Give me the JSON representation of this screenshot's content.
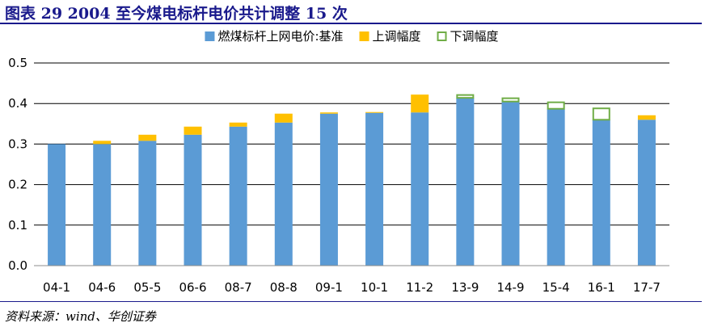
{
  "figure": {
    "title": "图表 29    2004 至今煤电标杆电价共计调整 15 次",
    "source": "资料来源：wind、华创证券"
  },
  "chart_data": {
    "type": "bar",
    "stacked": true,
    "categories": [
      "04-1",
      "04-6",
      "05-5",
      "06-6",
      "08-7",
      "08-8",
      "09-1",
      "10-1",
      "11-2",
      "13-9",
      "14-9",
      "15-4",
      "16-1",
      "17-7"
    ],
    "series": [
      {
        "name": "燃煤标杆上网电价:基准",
        "values": [
          0.3,
          0.3,
          0.308,
          0.323,
          0.343,
          0.353,
          0.375,
          0.377,
          0.378,
          0.414,
          0.405,
          0.387,
          0.36,
          0.36
        ],
        "color": "#5b9bd5"
      },
      {
        "name": "上调幅度",
        "values": [
          0,
          0.008,
          0.015,
          0.02,
          0.01,
          0.022,
          0.003,
          0.002,
          0.044,
          0,
          0,
          0,
          0,
          0.011
        ],
        "color": "#ffc000"
      },
      {
        "name": "下调幅度",
        "values": [
          0,
          0,
          0,
          0,
          0,
          0,
          0,
          0,
          0,
          0.009,
          0.01,
          0.018,
          0.03,
          0
        ],
        "color": "#70ad47"
      }
    ],
    "ylim": [
      0,
      0.5
    ],
    "yticks": [
      "0.0",
      "0.1",
      "0.2",
      "0.3",
      "0.4",
      "0.5"
    ],
    "grid": true,
    "legend_position": "top-center"
  }
}
